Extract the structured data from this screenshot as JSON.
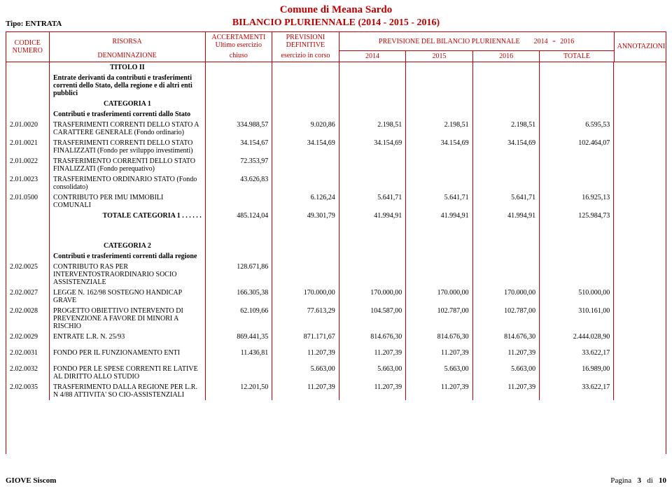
{
  "header": {
    "comune": "Comune di Meana Sardo",
    "bilancio": "BILANCIO PLURIENNALE (2014 - 2015 - 2016)",
    "tipo": "Tipo: ENTRATA",
    "cols": {
      "codice": "CODICE",
      "numero": "NUMERO",
      "risorsa": "RISORSA",
      "denominazione": "DENOMINAZIONE",
      "accertamenti": "ACCERTAMENTI",
      "ultimo": "Ultimo esercizio",
      "chiuso": "chiuso",
      "previsioni": "PREVISIONI",
      "definitive": "DEFINITIVE",
      "esercizio": "esercizio in corso",
      "prev_plur": "PREVISIONE DEL BILANCIO PLURIENNALE",
      "y_start": "2014",
      "dash": "-",
      "y_end": "2016",
      "y2014": "2014",
      "y2015": "2015",
      "y2016": "2016",
      "totale": "TOTALE",
      "annotazioni": "ANNOTAZIONI"
    }
  },
  "section1": {
    "titolo": "TITOLO  II",
    "titolo_desc": "Entrate derivanti da contributi e trasferimenti correnti dello Stato, della regione e di altri enti pubblici",
    "cat": "CATEGORIA   1",
    "cat_desc": "Contributi e trasferimenti correnti dallo Stato"
  },
  "rows1": [
    {
      "code": "2.01.0020",
      "desc": "TRASFERIMENTI CORRENTI DELLO STATO A CARATTERE GENERALE (Fondo ordinario)",
      "c1": "334.988,57",
      "c2": "9.020,86",
      "c3": "2.198,51",
      "c4": "2.198,51",
      "c5": "2.198,51",
      "c6": "6.595,53"
    },
    {
      "code": "2.01.0021",
      "desc": "TRASFERIMENTI CORRENTI DELLO STATO FINALIZZATI (Fondo per sviluppo investimenti)",
      "c1": "34.154,67",
      "c2": "34.154,69",
      "c3": "34.154,69",
      "c4": "34.154,69",
      "c5": "34.154,69",
      "c6": "102.464,07"
    },
    {
      "code": "2.01.0022",
      "desc": "TRASFERIMENTO CORRENTI DELLO STATO FINALIZZATI (Fondo perequativo)",
      "c1": "72.353,97",
      "c2": "",
      "c3": "",
      "c4": "",
      "c5": "",
      "c6": ""
    },
    {
      "code": "2.01.0023",
      "desc": "TRASFERIMENTO ORDINARIO STATO (Fondo consolidato)",
      "c1": "43.626,83",
      "c2": "",
      "c3": "",
      "c4": "",
      "c5": "",
      "c6": ""
    },
    {
      "code": "2.01.0500",
      "desc": "CONTRIBUTO PER IMU IMMOBILI COMUNALI",
      "c1": "",
      "c2": "6.126,24",
      "c3": "5.641,71",
      "c4": "5.641,71",
      "c5": "5.641,71",
      "c6": "16.925,13"
    }
  ],
  "tot1": {
    "label": "TOTALE  CATEGORIA  1  . . . . . .",
    "c1": "485.124,04",
    "c2": "49.301,79",
    "c3": "41.994,91",
    "c4": "41.994,91",
    "c5": "41.994,91",
    "c6": "125.984,73"
  },
  "section2": {
    "cat": "CATEGORIA   2",
    "cat_desc": "Contributi e trasferimenti correnti dalla regione"
  },
  "rows2": [
    {
      "code": "2.02.0025",
      "desc": "CONTRIBUTO RAS PER INTERVENTOSTRAORDINARIO SOCIO ASSISTENZIALE",
      "c1": "128.671,86",
      "c2": "",
      "c3": "",
      "c4": "",
      "c5": "",
      "c6": ""
    },
    {
      "code": "2.02.0027",
      "desc": "LEGGE N. 162/98 SOSTEGNO HANDICAP GRAVE",
      "c1": "166.305,38",
      "c2": "170.000,00",
      "c3": "170.000,00",
      "c4": "170.000,00",
      "c5": "170.000,00",
      "c6": "510.000,00"
    },
    {
      "code": "2.02.0028",
      "desc": "PROGETTO OBIETTIVO INTERVENTO DI PREVENZIONE A FAVORE DI MINORI A RISCHIO",
      "c1": "62.109,66",
      "c2": "77.613,29",
      "c3": "104.587,00",
      "c4": "102.787,00",
      "c5": "102.787,00",
      "c6": "310.161,00"
    },
    {
      "code": "2.02.0029",
      "desc": "ENTRATE L.R. N. 25/93",
      "c1": "869.441,35",
      "c2": "871.171,67",
      "c3": "814.676,30",
      "c4": "814.676,30",
      "c5": "814.676,30",
      "c6": "2.444.028,90"
    }
  ],
  "rows2b": [
    {
      "code": "2.02.0031",
      "desc": "FONDO PER IL FUNZIONAMENTO ENTI",
      "c1": "11.436,81",
      "c2": "11.207,39",
      "c3": "11.207,39",
      "c4": "11.207,39",
      "c5": "11.207,39",
      "c6": "33.622,17"
    }
  ],
  "rows2c": [
    {
      "code": "2.02.0032",
      "desc": "FONDO PER LE SPESE CORRENTI RE LATIVE AL DIRITTO ALLO STUDIO",
      "c1": "",
      "c2": "5.663,00",
      "c3": "5.663,00",
      "c4": "5.663,00",
      "c5": "5.663,00",
      "c6": "16.989,00"
    },
    {
      "code": "2.02.0035",
      "desc": "TRASFERIMENTO DALLA REGIONE PER L.R. N 4/88 ATTIVITA' SO CIO-ASSISTENZIALI",
      "c1": "12.201,50",
      "c2": "11.207,39",
      "c3": "11.207,39",
      "c4": "11.207,39",
      "c5": "11.207,39",
      "c6": "33.622,17"
    }
  ],
  "footer": {
    "app": "GIOVE Siscom",
    "pagina_lbl": "Pagina",
    "page": "3",
    "di": "di",
    "total": "10"
  },
  "colwidths": {
    "code": 58,
    "desc": 210,
    "c1": 90,
    "c2": 90,
    "c3": 90,
    "c4": 90,
    "c5": 90,
    "c6": 100,
    "ann": 70
  }
}
